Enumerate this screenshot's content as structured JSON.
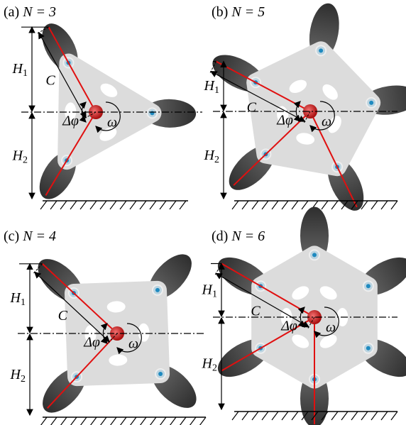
{
  "panels": [
    {
      "label": "(a)",
      "n": "N = 3",
      "c": "C",
      "h1": {
        "letter": "H",
        "sub": "1"
      },
      "h2": {
        "letter": "H",
        "sub": "2"
      },
      "dphi": "Δφ",
      "omega": "ω"
    },
    {
      "label": "(b)",
      "n": "N = 5",
      "c": "C",
      "h1": {
        "letter": "H",
        "sub": "1"
      },
      "h2": {
        "letter": "H",
        "sub": "2"
      },
      "dphi": "Δφ",
      "omega": "ω"
    },
    {
      "label": "(c)",
      "n": "N = 4",
      "c": "C",
      "h1": {
        "letter": "H",
        "sub": "1"
      },
      "h2": {
        "letter": "H",
        "sub": "2"
      },
      "dphi": "Δφ",
      "omega": "ω"
    },
    {
      "label": "(d)",
      "n": "N = 6",
      "c": "C",
      "h1": {
        "letter": "H",
        "sub": "1"
      },
      "h2": {
        "letter": "H",
        "sub": "2"
      },
      "dphi": "Δφ",
      "omega": "ω"
    }
  ]
}
